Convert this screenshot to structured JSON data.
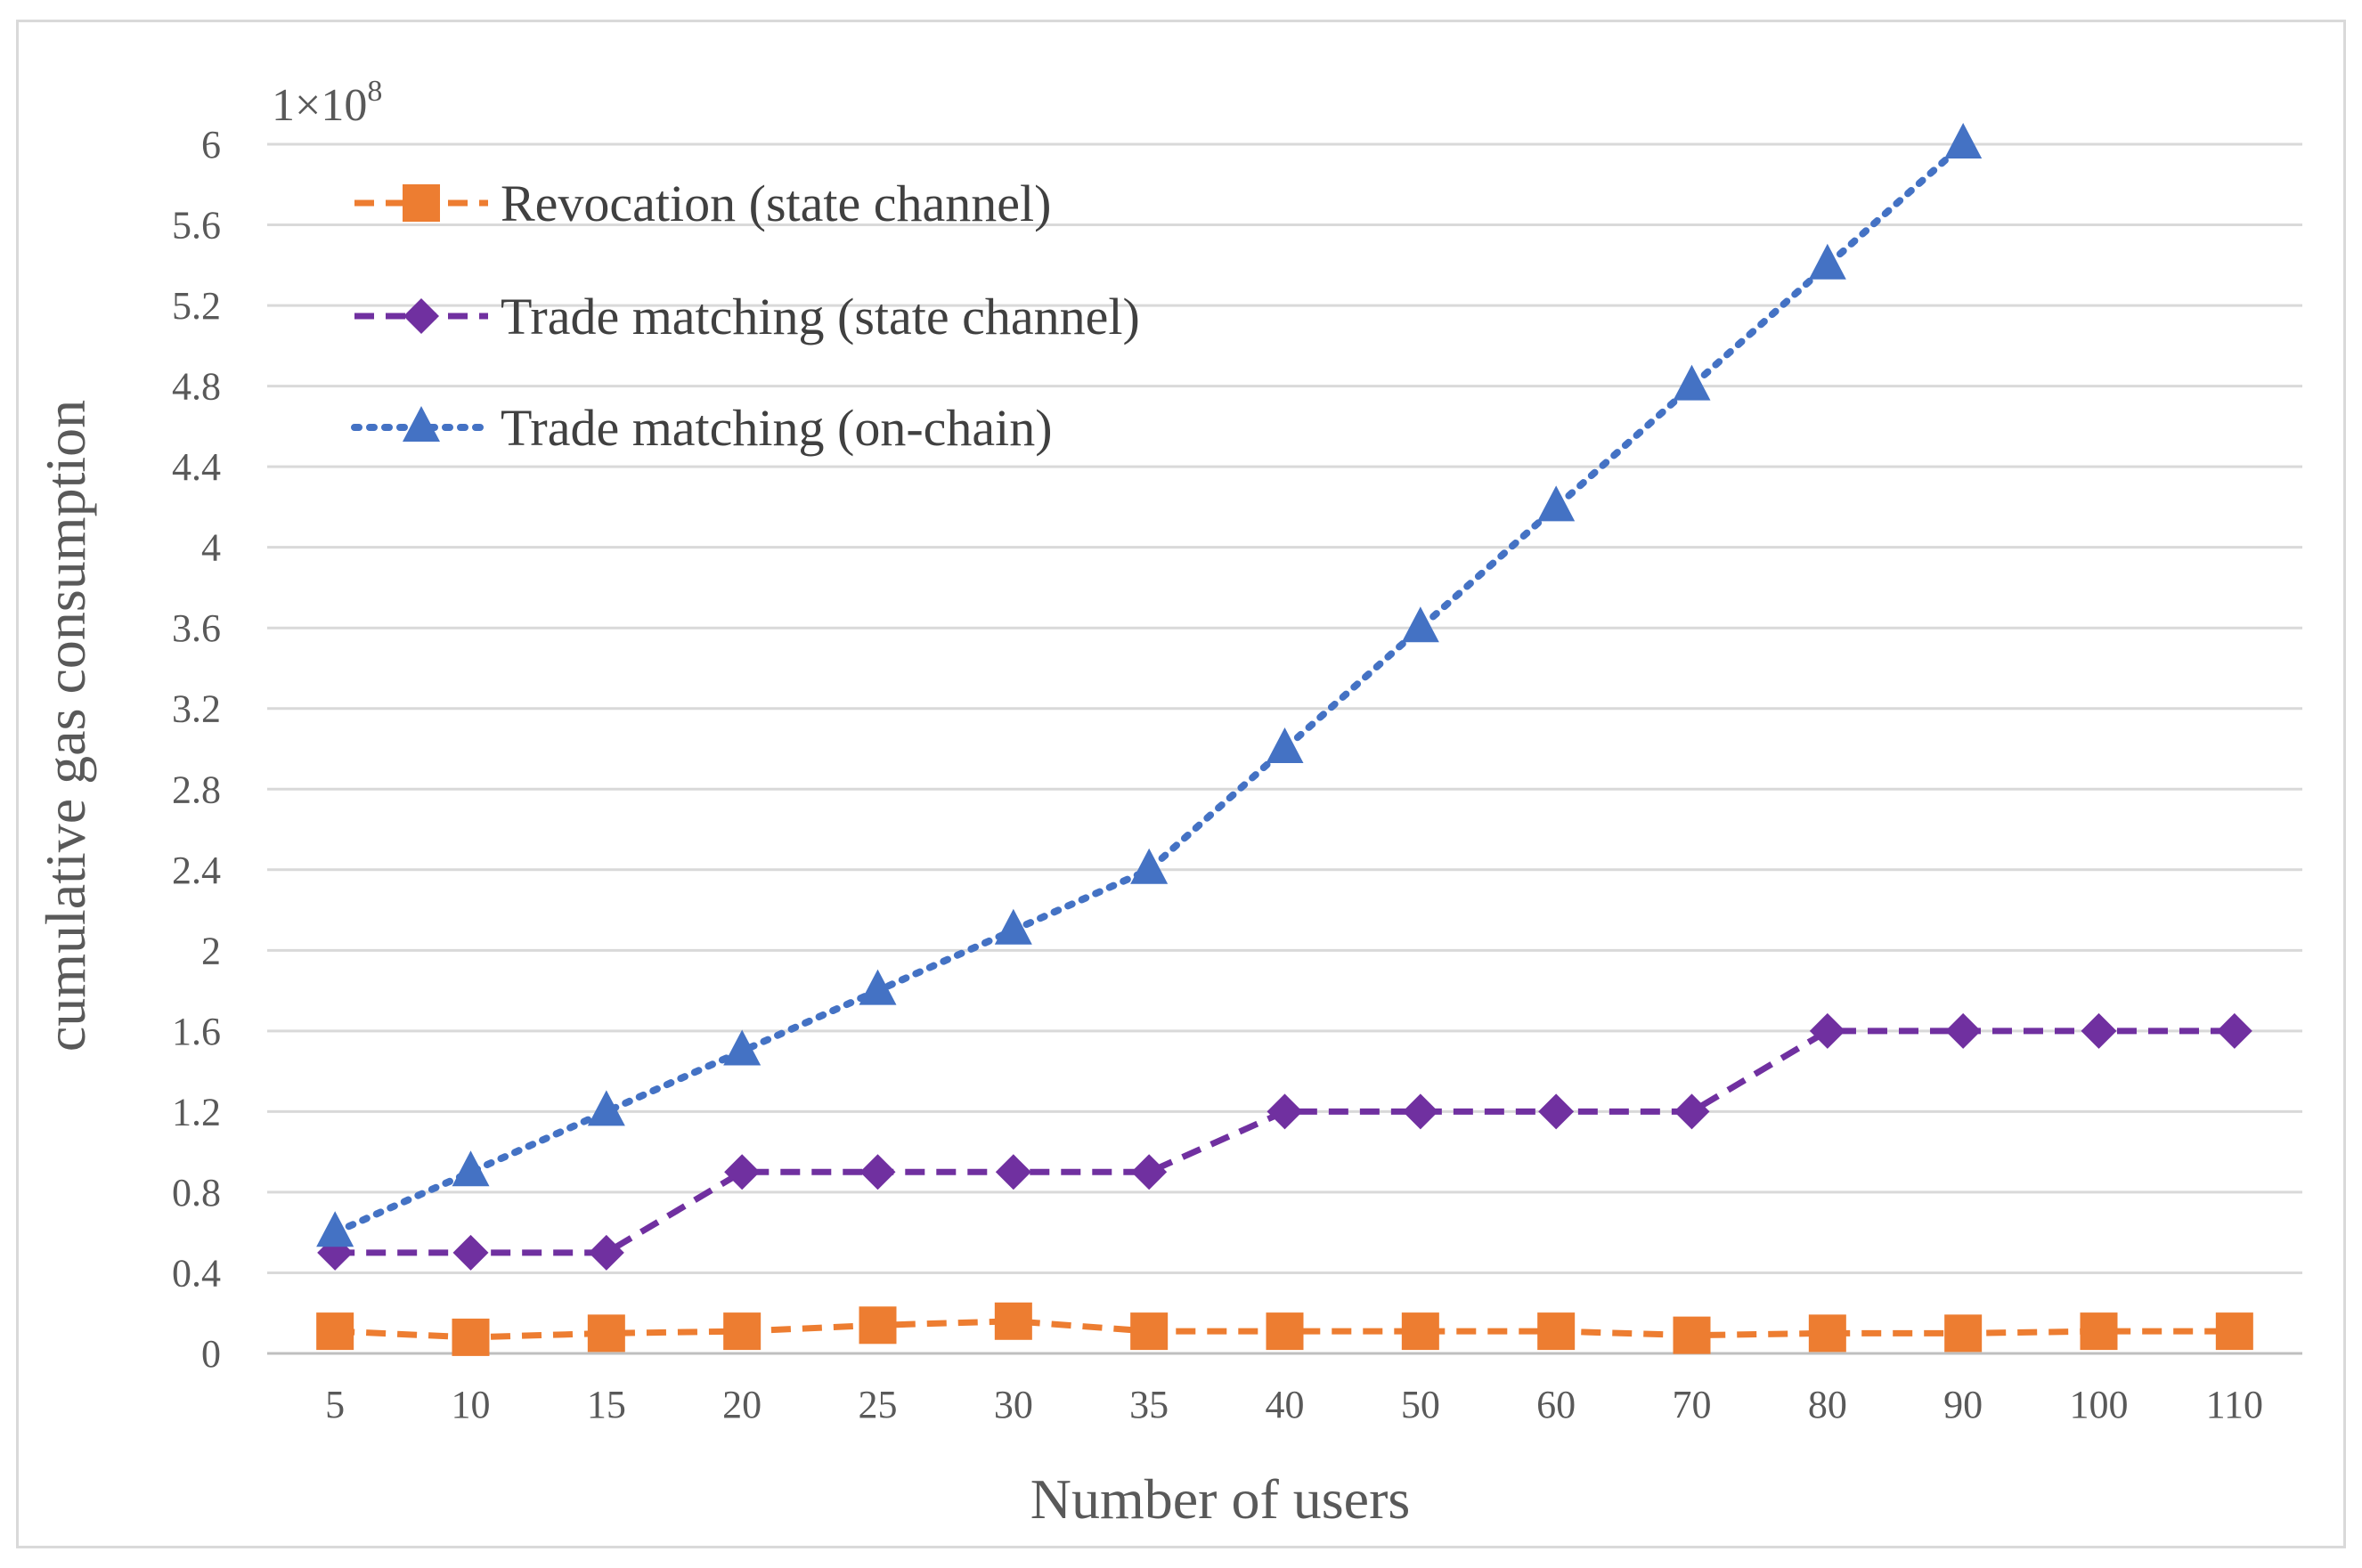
{
  "chart_data": {
    "type": "line",
    "title": "",
    "xlabel": "Number of users",
    "ylabel": "cumulative gas consumption",
    "y_multiplier": {
      "base": "1×10",
      "exponent": "8"
    },
    "categories": [
      "5",
      "10",
      "15",
      "20",
      "25",
      "30",
      "35",
      "40",
      "50",
      "60",
      "70",
      "80",
      "90",
      "100",
      "110"
    ],
    "ylim": [
      0,
      6
    ],
    "yticks": [
      "0",
      "0.4",
      "0.8",
      "1.2",
      "1.6",
      "2",
      "2.4",
      "2.8",
      "3.2",
      "3.6",
      "4",
      "4.4",
      "4.8",
      "5.2",
      "5.6",
      "6"
    ],
    "ytick_values": [
      0,
      0.4,
      0.8,
      1.2,
      1.6,
      2,
      2.4,
      2.8,
      3.2,
      3.6,
      4,
      4.4,
      4.8,
      5.2,
      5.6,
      6
    ],
    "grid": true,
    "legend_position": "top-left",
    "series": [
      {
        "name": "Revocation (state channel)",
        "color": "#ed7d31",
        "marker": "square",
        "line_style": "dashed",
        "values": [
          0.11,
          0.08,
          0.1,
          0.11,
          0.14,
          0.16,
          0.11,
          0.11,
          0.11,
          0.11,
          0.09,
          0.1,
          0.1,
          0.11,
          0.11
        ]
      },
      {
        "name": "Trade matching (state channel)",
        "color": "#7030a0",
        "marker": "diamond",
        "line_style": "dashed",
        "values": [
          0.5,
          0.5,
          0.5,
          0.9,
          0.9,
          0.9,
          0.9,
          1.2,
          1.2,
          1.2,
          1.2,
          1.6,
          1.6,
          1.6,
          1.6
        ]
      },
      {
        "name": "Trade matching (on-chain)",
        "color": "#4472c4",
        "marker": "triangle",
        "line_style": "dotted",
        "values": [
          0.6,
          0.9,
          1.2,
          1.5,
          1.8,
          2.1,
          2.4,
          3.0,
          3.6,
          4.2,
          4.8,
          5.4,
          6.0,
          null,
          null
        ]
      }
    ]
  }
}
